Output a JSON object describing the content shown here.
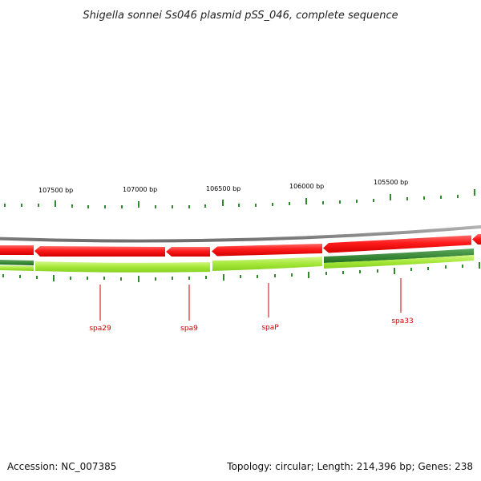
{
  "title": "Shigella sonnei Ss046 plasmid pSS_046, complete sequence",
  "ruler_labels": [
    "107500 bp",
    "107000 bp",
    "106500 bp",
    "106000 bp",
    "105500 bp"
  ],
  "genes": [
    "spa29",
    "spa9",
    "spaP",
    "spa33"
  ],
  "footer": {
    "accession": "Accession: NC_007385",
    "summary": "Topology: circular; Length: 214,396 bp; Genes: 238"
  },
  "colors": {
    "backbone": "#8c8c8c",
    "forward_features": "#ee1111",
    "orf_light": "#99e62a",
    "orf_dark": "#2e8b2e",
    "ticks": "#2e8b2e",
    "gene_label": "#cc0000"
  }
}
